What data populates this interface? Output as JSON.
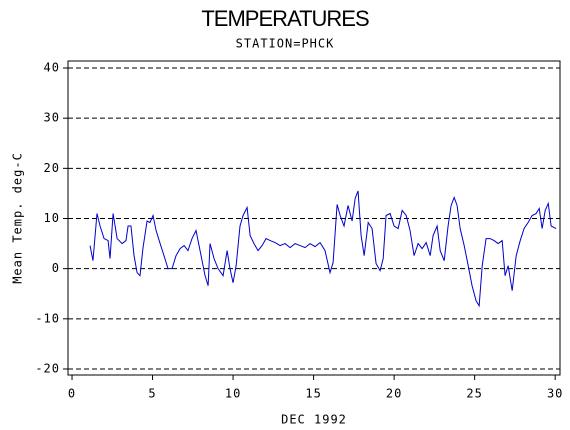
{
  "chart_data": {
    "type": "line",
    "title": "TEMPERATURES",
    "subtitle": "STATION=PHCK",
    "x_label": "DEC 1992",
    "y_label": "Mean Temp. deg-C",
    "xlim": [
      -0.25,
      30.3
    ],
    "ylim": [
      -21.2,
      41.4
    ],
    "xticks": [
      0,
      5,
      10,
      15,
      20,
      25,
      30
    ],
    "yticks": [
      -20,
      -10,
      0,
      10,
      20,
      30,
      40
    ],
    "grid": true,
    "series": [
      {
        "color": "#0000cc",
        "x": [
          1.12,
          1.3,
          1.55,
          1.74,
          1.99,
          2.24,
          2.36,
          2.55,
          2.8,
          3.11,
          3.35,
          3.48,
          3.66,
          3.85,
          4.04,
          4.22,
          4.41,
          4.66,
          4.84,
          5.03,
          5.22,
          5.47,
          5.71,
          5.96,
          6.21,
          6.46,
          6.71,
          6.96,
          7.2,
          7.45,
          7.7,
          7.95,
          8.26,
          8.45,
          8.57,
          8.82,
          9.07,
          9.38,
          9.63,
          9.81,
          10.0,
          10.19,
          10.43,
          10.62,
          10.87,
          11.06,
          11.3,
          11.55,
          11.8,
          12.05,
          12.3,
          12.61,
          12.92,
          13.23,
          13.54,
          13.85,
          14.16,
          14.47,
          14.78,
          15.09,
          15.4,
          15.71,
          16.02,
          16.21,
          16.46,
          16.65,
          16.89,
          17.14,
          17.39,
          17.58,
          17.76,
          17.95,
          18.14,
          18.39,
          18.63,
          18.88,
          19.13,
          19.32,
          19.5,
          19.75,
          20.0,
          20.25,
          20.5,
          20.75,
          20.99,
          21.24,
          21.49,
          21.74,
          21.99,
          22.24,
          22.42,
          22.67,
          22.86,
          23.11,
          23.35,
          23.54,
          23.73,
          23.91,
          24.1,
          24.35,
          24.6,
          24.84,
          25.09,
          25.28,
          25.47,
          25.71,
          25.96,
          26.21,
          26.46,
          26.71,
          26.89,
          27.08,
          27.33,
          27.58,
          27.83,
          28.07,
          28.32,
          28.57,
          28.82,
          29.01,
          29.19,
          29.38,
          29.57,
          29.75,
          29.94,
          30.06
        ],
        "values": [
          4.6,
          1.6,
          11,
          8.5,
          6,
          5.6,
          2,
          11,
          6,
          5,
          5.6,
          8.5,
          8.5,
          2.6,
          -0.8,
          -1.4,
          4.2,
          9.5,
          9.2,
          10.6,
          7.6,
          5,
          2.6,
          0,
          0,
          2.6,
          4,
          4.6,
          3.6,
          6,
          7.6,
          3.6,
          -1.4,
          -3.4,
          5,
          2,
          0,
          -1.4,
          3.6,
          0,
          -2.8,
          0.6,
          8.5,
          10.6,
          12.2,
          6.6,
          5,
          3.6,
          4.6,
          6,
          5.6,
          5.2,
          4.6,
          5,
          4.2,
          5,
          4.6,
          4.2,
          5,
          4.4,
          5.2,
          3.6,
          -0.8,
          1.2,
          12.8,
          10.6,
          8.5,
          12.6,
          9.5,
          14,
          15.5,
          6.6,
          2.6,
          9.2,
          8,
          1,
          -0.4,
          2,
          10.6,
          11,
          8.5,
          8,
          11.6,
          10.6,
          7.6,
          2.6,
          5,
          4,
          5.2,
          2.6,
          6.6,
          8.5,
          3.6,
          1.6,
          8.5,
          12.6,
          14.2,
          12.6,
          8,
          4.6,
          0.6,
          -3.4,
          -6.4,
          -7.4,
          0.6,
          6,
          6,
          5.6,
          5,
          5.6,
          -1.4,
          0.6,
          -4.4,
          2.6,
          5.6,
          8,
          9.2,
          10.6,
          11,
          12,
          8,
          11.6,
          13,
          8.5,
          8.2,
          8
        ]
      }
    ]
  }
}
